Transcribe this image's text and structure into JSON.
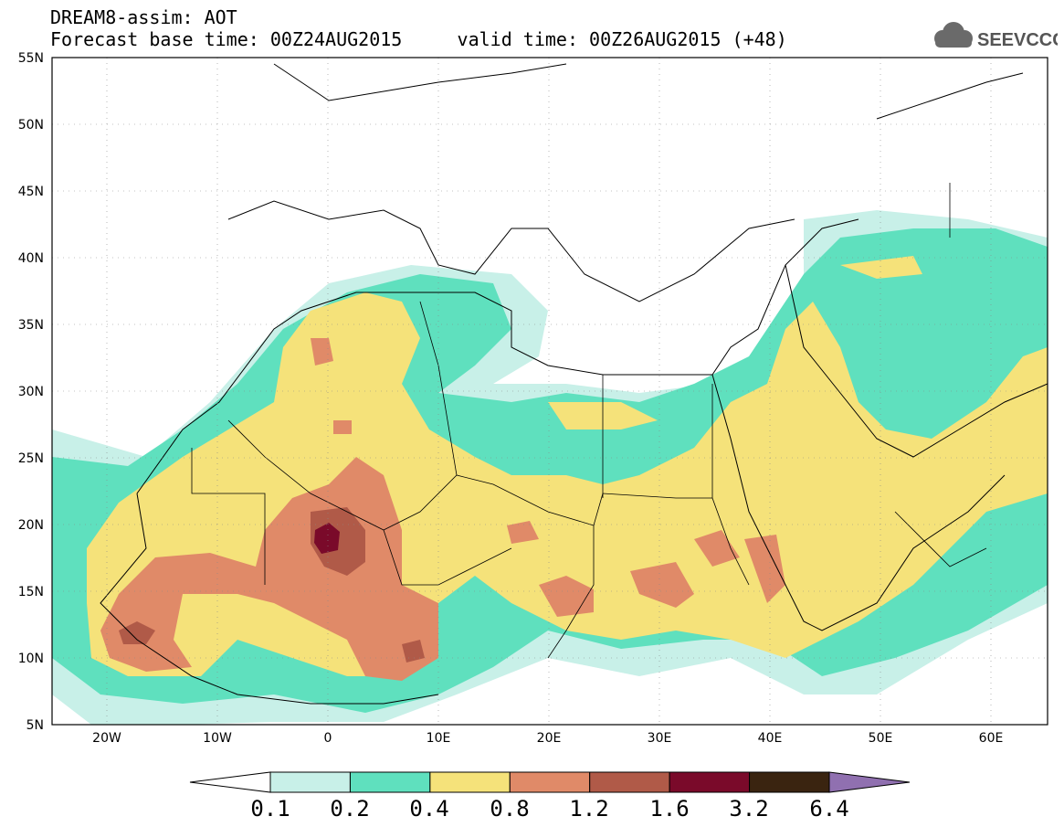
{
  "header": {
    "title_line1": "DREAM8-assim: AOT",
    "forecast_base_label": "Forecast base time: 00Z24AUG2015",
    "valid_time_label": "valid time: 00Z26AUG2015 (+48)"
  },
  "logo": {
    "text": "SEEVCCC",
    "icon": "cloud-icon"
  },
  "map": {
    "lon_range": [
      -25,
      65
    ],
    "lat_range": [
      5,
      55
    ],
    "lat_ticks": [
      "55N",
      "50N",
      "45N",
      "40N",
      "35N",
      "30N",
      "25N",
      "20N",
      "15N",
      "10N",
      "5N"
    ],
    "lon_ticks": [
      "20W",
      "10W",
      "0",
      "10E",
      "20E",
      "30E",
      "40E",
      "50E",
      "60E"
    ]
  },
  "colorbar": {
    "levels": [
      "0.1",
      "0.2",
      "0.4",
      "0.8",
      "1.2",
      "1.6",
      "3.2",
      "6.4"
    ],
    "colors": [
      "#c8f0e8",
      "#5fe0be",
      "#f5e27a",
      "#e08a68",
      "#b05a48",
      "#7a0a2a",
      "#3a2410",
      "#9070b0"
    ],
    "under_color": "#ffffff"
  }
}
